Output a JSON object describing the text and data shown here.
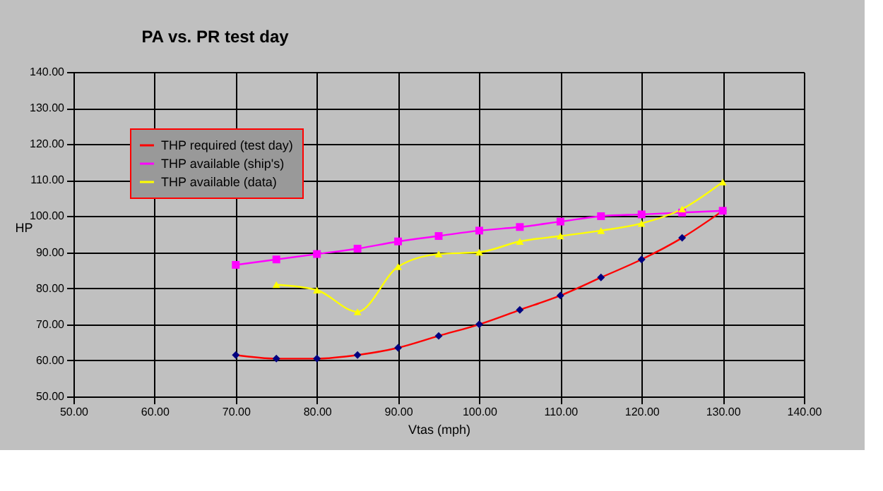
{
  "chart_data": {
    "type": "line",
    "title": "PA vs. PR test day",
    "xlabel": "Vtas (mph)",
    "ylabel": "HP",
    "x": [
      70,
      75,
      80,
      85,
      90,
      95,
      100,
      105,
      110,
      115,
      120,
      125,
      130
    ],
    "series": [
      {
        "name": "THP required (test day)",
        "color": "#ff0000",
        "marker": "diamond",
        "values": [
          61.5,
          60.5,
          60.5,
          61.5,
          63.5,
          66.8,
          70,
          74,
          78,
          83,
          88,
          94,
          101.5
        ]
      },
      {
        "name": "THP available (ship's)",
        "color": "#ff00ff",
        "marker": "square",
        "values": [
          86.5,
          88,
          89.5,
          91,
          93,
          94.5,
          96,
          97,
          98.5,
          100,
          100.5,
          101,
          101.5
        ]
      },
      {
        "name": "THP available (data)",
        "color": "#ffff00",
        "marker": "triangle",
        "values": [
          null,
          81,
          79.5,
          73.5,
          86,
          89.5,
          90,
          93,
          94.5,
          96,
          98,
          102,
          109.5
        ]
      }
    ],
    "xlim": [
      50,
      140
    ],
    "xticks": [
      {
        "value": 50,
        "label": "50.00"
      },
      {
        "value": 60,
        "label": "60.00"
      },
      {
        "value": 70,
        "label": "70.00"
      },
      {
        "value": 80,
        "label": "80.00"
      },
      {
        "value": 90,
        "label": "90.00"
      },
      {
        "value": 100,
        "label": "100.00"
      },
      {
        "value": 110,
        "label": "110.00"
      },
      {
        "value": 120,
        "label": "120.00"
      },
      {
        "value": 130,
        "label": "130.00"
      },
      {
        "value": 140,
        "label": "140.00"
      }
    ],
    "ylim": [
      50,
      140
    ],
    "yticks": [
      {
        "value": 50,
        "label": "50.00"
      },
      {
        "value": 60,
        "label": "60.00"
      },
      {
        "value": 70,
        "label": "70.00"
      },
      {
        "value": 80,
        "label": "80.00"
      },
      {
        "value": 90,
        "label": "90.00"
      },
      {
        "value": 100,
        "label": "100.00"
      },
      {
        "value": 110,
        "label": "110.00"
      },
      {
        "value": 120,
        "label": "120.00"
      },
      {
        "value": 130,
        "label": "130.00"
      },
      {
        "value": 140,
        "label": "140.00"
      }
    ],
    "grid": true,
    "legend": "top left",
    "line_style": "solid"
  }
}
